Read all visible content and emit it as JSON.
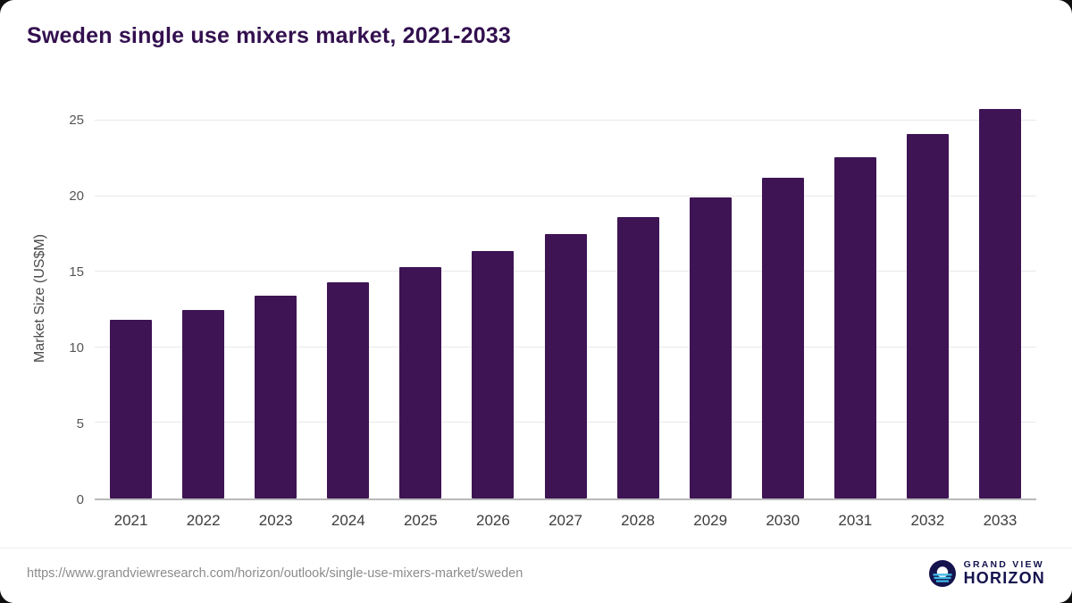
{
  "title": "Sweden single use mixers market, 2021-2033",
  "chart_data": {
    "type": "bar",
    "title": "Sweden single use mixers market, 2021-2033",
    "categories": [
      "2021",
      "2022",
      "2023",
      "2024",
      "2025",
      "2026",
      "2027",
      "2028",
      "2029",
      "2030",
      "2031",
      "2032",
      "2033"
    ],
    "values": [
      11.8,
      12.5,
      13.4,
      14.3,
      15.3,
      16.4,
      17.5,
      18.6,
      19.9,
      21.2,
      22.6,
      24.1,
      25.8
    ],
    "xlabel": "",
    "ylabel": "Market Size (US$M)",
    "ylim": [
      0,
      26.6
    ],
    "yticks": [
      0,
      5,
      10,
      15,
      20,
      25
    ],
    "grid": true,
    "legend": "none",
    "bar_color": "#3e1455",
    "title_color": "#33104f"
  },
  "footer": {
    "source_url": "https://www.grandviewresearch.com/horizon/outlook/single-use-mixers-market/sweden",
    "logo": {
      "icon": "horizon-logo-icon",
      "line1": "GRAND VIEW",
      "line2": "HORIZON",
      "color": "#15134e",
      "accent": "#3fb9e6"
    }
  }
}
